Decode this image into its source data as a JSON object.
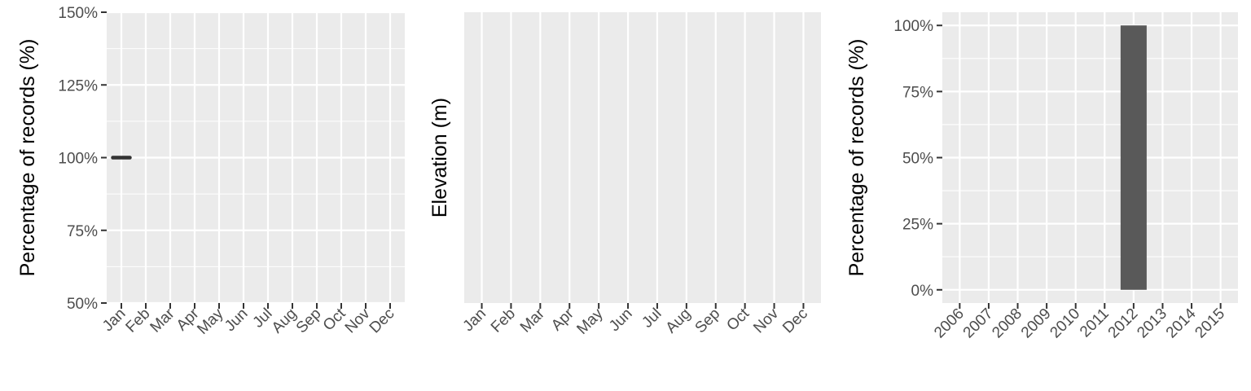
{
  "chart_data": [
    {
      "type": "line",
      "title": "",
      "xlabel": "",
      "ylabel": "Percentage of records (%)",
      "categories": [
        "Jan",
        "Feb",
        "Mar",
        "Apr",
        "May",
        "Jun",
        "Jul",
        "Aug",
        "Sep",
        "Oct",
        "Nov",
        "Dec"
      ],
      "y_ticks": [
        "50%",
        "75%",
        "100%",
        "125%",
        "150%"
      ],
      "ylim": [
        50,
        150
      ],
      "grid": true,
      "series": [
        {
          "values": [
            100,
            null,
            null,
            null,
            null,
            null,
            null,
            null,
            null,
            null,
            null,
            null
          ]
        }
      ],
      "colors": {
        "panel": "#ebebeb",
        "grid": "#ffffff",
        "mark": "#333333"
      }
    },
    {
      "type": "scatter",
      "title": "",
      "xlabel": "",
      "ylabel": "Elevation (m)",
      "categories": [
        "Jan",
        "Feb",
        "Mar",
        "Apr",
        "May",
        "Jun",
        "Jul",
        "Aug",
        "Sep",
        "Oct",
        "Nov",
        "Dec"
      ],
      "grid": true,
      "series": [],
      "colors": {
        "panel": "#ebebeb",
        "grid": "#ffffff"
      }
    },
    {
      "type": "bar",
      "title": "",
      "xlabel": "",
      "ylabel": "Percentage of records (%)",
      "categories": [
        "2006",
        "2007",
        "2008",
        "2009",
        "2010",
        "2011",
        "2012",
        "2013",
        "2014",
        "2015"
      ],
      "y_ticks": [
        "0%",
        "25%",
        "50%",
        "75%",
        "100%"
      ],
      "ylim": [
        -5,
        105
      ],
      "grid": true,
      "series": [
        {
          "values": [
            0,
            0,
            0,
            0,
            0,
            0,
            100,
            0,
            0,
            0
          ]
        }
      ],
      "colors": {
        "panel": "#ebebeb",
        "grid": "#ffffff",
        "bar": "#595959"
      }
    }
  ]
}
